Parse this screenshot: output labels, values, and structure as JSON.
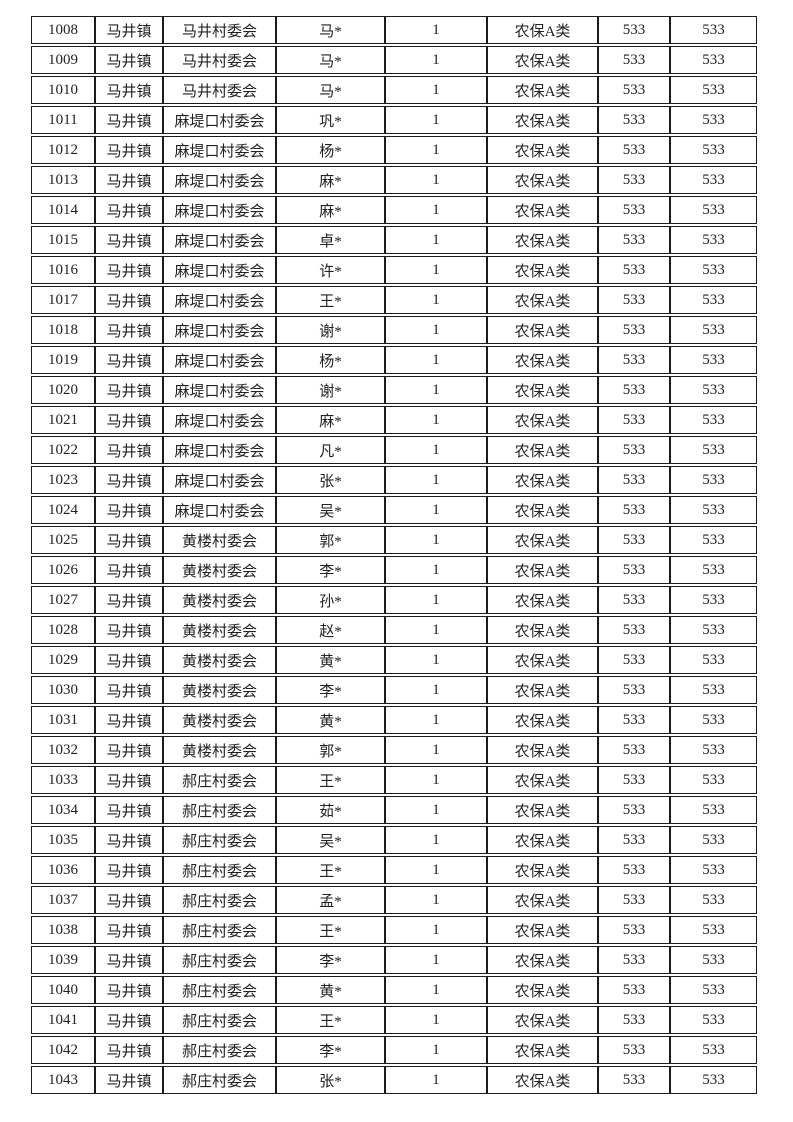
{
  "colors": {
    "page_background": "#ffffff",
    "border": "#1c1c1c",
    "text": "#222222"
  },
  "table": {
    "rows": [
      [
        "1008",
        "马井镇",
        "马井村委会",
        "马*",
        "1",
        "农保A类",
        "533",
        "533"
      ],
      [
        "1009",
        "马井镇",
        "马井村委会",
        "马*",
        "1",
        "农保A类",
        "533",
        "533"
      ],
      [
        "1010",
        "马井镇",
        "马井村委会",
        "马*",
        "1",
        "农保A类",
        "533",
        "533"
      ],
      [
        "1011",
        "马井镇",
        "麻堤口村委会",
        "巩*",
        "1",
        "农保A类",
        "533",
        "533"
      ],
      [
        "1012",
        "马井镇",
        "麻堤口村委会",
        "杨*",
        "1",
        "农保A类",
        "533",
        "533"
      ],
      [
        "1013",
        "马井镇",
        "麻堤口村委会",
        "麻*",
        "1",
        "农保A类",
        "533",
        "533"
      ],
      [
        "1014",
        "马井镇",
        "麻堤口村委会",
        "麻*",
        "1",
        "农保A类",
        "533",
        "533"
      ],
      [
        "1015",
        "马井镇",
        "麻堤口村委会",
        "卓*",
        "1",
        "农保A类",
        "533",
        "533"
      ],
      [
        "1016",
        "马井镇",
        "麻堤口村委会",
        "许*",
        "1",
        "农保A类",
        "533",
        "533"
      ],
      [
        "1017",
        "马井镇",
        "麻堤口村委会",
        "王*",
        "1",
        "农保A类",
        "533",
        "533"
      ],
      [
        "1018",
        "马井镇",
        "麻堤口村委会",
        "谢*",
        "1",
        "农保A类",
        "533",
        "533"
      ],
      [
        "1019",
        "马井镇",
        "麻堤口村委会",
        "杨*",
        "1",
        "农保A类",
        "533",
        "533"
      ],
      [
        "1020",
        "马井镇",
        "麻堤口村委会",
        "谢*",
        "1",
        "农保A类",
        "533",
        "533"
      ],
      [
        "1021",
        "马井镇",
        "麻堤口村委会",
        "麻*",
        "1",
        "农保A类",
        "533",
        "533"
      ],
      [
        "1022",
        "马井镇",
        "麻堤口村委会",
        "凡*",
        "1",
        "农保A类",
        "533",
        "533"
      ],
      [
        "1023",
        "马井镇",
        "麻堤口村委会",
        "张*",
        "1",
        "农保A类",
        "533",
        "533"
      ],
      [
        "1024",
        "马井镇",
        "麻堤口村委会",
        "吴*",
        "1",
        "农保A类",
        "533",
        "533"
      ],
      [
        "1025",
        "马井镇",
        "黄楼村委会",
        "郭*",
        "1",
        "农保A类",
        "533",
        "533"
      ],
      [
        "1026",
        "马井镇",
        "黄楼村委会",
        "李*",
        "1",
        "农保A类",
        "533",
        "533"
      ],
      [
        "1027",
        "马井镇",
        "黄楼村委会",
        "孙*",
        "1",
        "农保A类",
        "533",
        "533"
      ],
      [
        "1028",
        "马井镇",
        "黄楼村委会",
        "赵*",
        "1",
        "农保A类",
        "533",
        "533"
      ],
      [
        "1029",
        "马井镇",
        "黄楼村委会",
        "黄*",
        "1",
        "农保A类",
        "533",
        "533"
      ],
      [
        "1030",
        "马井镇",
        "黄楼村委会",
        "李*",
        "1",
        "农保A类",
        "533",
        "533"
      ],
      [
        "1031",
        "马井镇",
        "黄楼村委会",
        "黄*",
        "1",
        "农保A类",
        "533",
        "533"
      ],
      [
        "1032",
        "马井镇",
        "黄楼村委会",
        "郭*",
        "1",
        "农保A类",
        "533",
        "533"
      ],
      [
        "1033",
        "马井镇",
        "郝庄村委会",
        "王*",
        "1",
        "农保A类",
        "533",
        "533"
      ],
      [
        "1034",
        "马井镇",
        "郝庄村委会",
        "茹*",
        "1",
        "农保A类",
        "533",
        "533"
      ],
      [
        "1035",
        "马井镇",
        "郝庄村委会",
        "吴*",
        "1",
        "农保A类",
        "533",
        "533"
      ],
      [
        "1036",
        "马井镇",
        "郝庄村委会",
        "王*",
        "1",
        "农保A类",
        "533",
        "533"
      ],
      [
        "1037",
        "马井镇",
        "郝庄村委会",
        "孟*",
        "1",
        "农保A类",
        "533",
        "533"
      ],
      [
        "1038",
        "马井镇",
        "郝庄村委会",
        "王*",
        "1",
        "农保A类",
        "533",
        "533"
      ],
      [
        "1039",
        "马井镇",
        "郝庄村委会",
        "李*",
        "1",
        "农保A类",
        "533",
        "533"
      ],
      [
        "1040",
        "马井镇",
        "郝庄村委会",
        "黄*",
        "1",
        "农保A类",
        "533",
        "533"
      ],
      [
        "1041",
        "马井镇",
        "郝庄村委会",
        "王*",
        "1",
        "农保A类",
        "533",
        "533"
      ],
      [
        "1042",
        "马井镇",
        "郝庄村委会",
        "李*",
        "1",
        "农保A类",
        "533",
        "533"
      ],
      [
        "1043",
        "马井镇",
        "郝庄村委会",
        "张*",
        "1",
        "农保A类",
        "533",
        "533"
      ]
    ]
  }
}
